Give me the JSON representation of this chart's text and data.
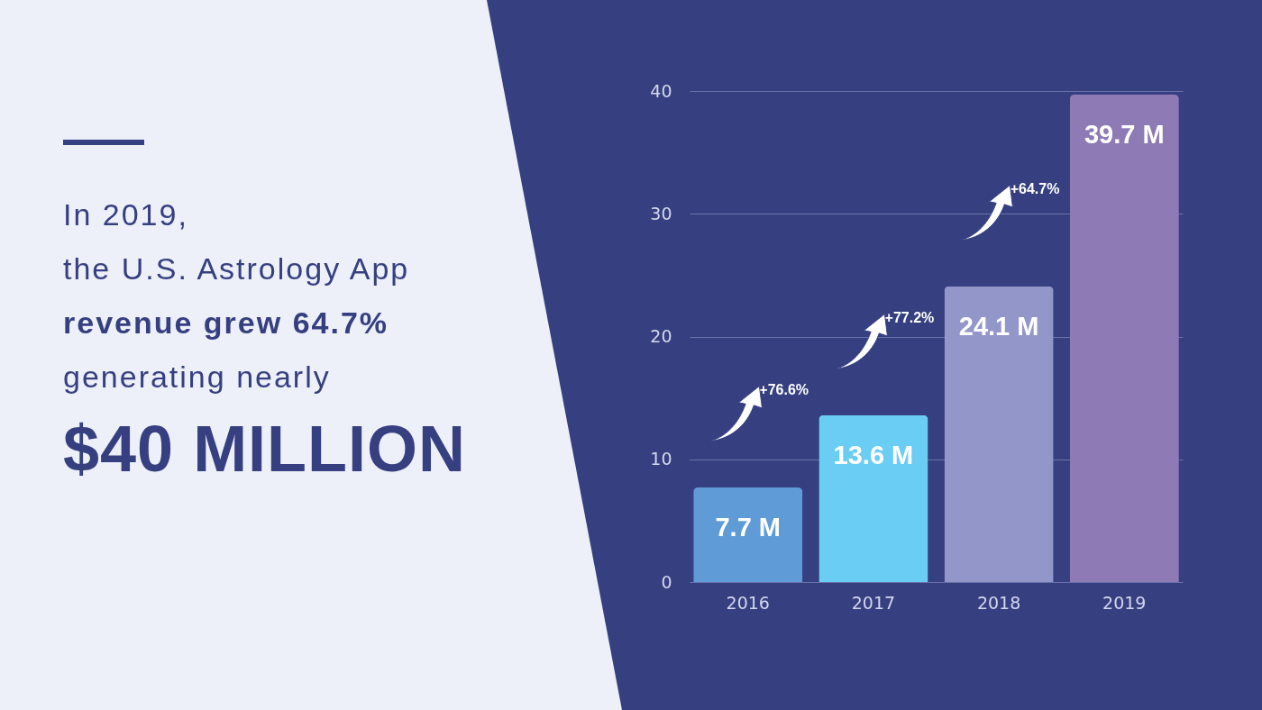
{
  "chart_data": {
    "type": "bar",
    "categories": [
      "2016",
      "2017",
      "2018",
      "2019"
    ],
    "values": [
      7.7,
      13.6,
      24.1,
      39.7
    ],
    "colors": [
      "#5f9bd6",
      "#69cdf4",
      "#9396c9",
      "#8e7ab5"
    ],
    "value_labels": [
      "7.7 M",
      "13.6 M",
      "24.1 M",
      "39.7 M"
    ],
    "ylim": [
      0,
      40
    ],
    "yticks": [
      0,
      10,
      20,
      30,
      40
    ],
    "grid": "y",
    "annotations": [
      "In 2019,",
      "the U.S. Astrology App",
      "revenue grew 64.7%",
      "generating nearly",
      "$40 MILLION",
      "+76.6%",
      "+77.2%",
      "+64.7%"
    ]
  }
}
